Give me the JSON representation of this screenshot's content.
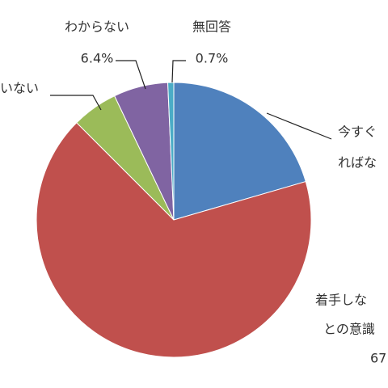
{
  "chart_data": {
    "type": "pie",
    "categories": [
      [
        "今すぐ",
        "ればな"
      ],
      [
        "着手しな",
        "との意識"
      ],
      [
        "いない"
      ],
      [
        "わからない"
      ],
      [
        "無回答"
      ]
    ],
    "values": [
      20.5,
      67.0,
      5.4,
      6.4,
      0.7
    ],
    "value_labels": [
      null,
      "67",
      null,
      "6.4%",
      "0.7%"
    ],
    "colors": [
      "#4f81bd",
      "#c0504d",
      "#9bbb59",
      "#8064a2",
      "#4bacc6"
    ]
  }
}
